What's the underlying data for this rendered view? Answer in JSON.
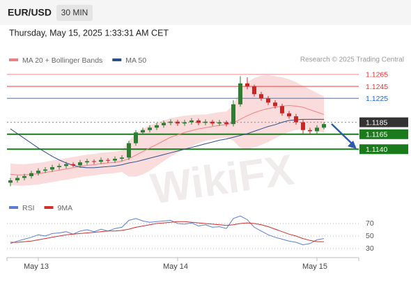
{
  "chart_data": {
    "type": "candlestick",
    "title": "EUR/USD",
    "timeframe": "30 MIN",
    "timestamp": "Thursday, May 15, 2025 1:33:31 AM CET",
    "source": "Research © 2025 Trading Central",
    "watermark": "WikiFX",
    "up_color": "#2e7d32",
    "down_color": "#c62828",
    "categories": [
      null,
      null,
      null,
      null,
      "May 13",
      null,
      null,
      null,
      null,
      null,
      null,
      null,
      null,
      null,
      null,
      null,
      null,
      null,
      null,
      null,
      null,
      null,
      null,
      null,
      "May 14",
      null,
      null,
      null,
      null,
      null,
      null,
      null,
      null,
      null,
      null,
      null,
      null,
      null,
      null,
      null,
      null,
      null,
      null,
      null,
      "May 15",
      null
    ],
    "open": [
      1.1084,
      1.1088,
      1.1092,
      1.1095,
      1.11,
      1.1104,
      1.1106,
      1.111,
      1.1112,
      1.1115,
      1.1113,
      1.1118,
      1.112,
      1.1119,
      1.1122,
      1.1121,
      1.1124,
      1.1126,
      1.115,
      1.1168,
      1.1172,
      1.1176,
      1.118,
      1.1184,
      1.1186,
      1.1183,
      1.1185,
      1.1188,
      1.1184,
      1.1186,
      1.1183,
      1.1185,
      1.1182,
      1.1215,
      1.125,
      1.1245,
      1.1232,
      1.1225,
      1.1218,
      1.1212,
      1.12,
      1.1195,
      1.1185,
      1.1172,
      1.117,
      1.1176
    ],
    "high": [
      1.1092,
      1.1096,
      1.1099,
      1.1104,
      1.1108,
      1.111,
      1.1114,
      1.1116,
      1.1119,
      1.1118,
      1.1122,
      1.1124,
      1.1123,
      1.1126,
      1.1125,
      1.1128,
      1.113,
      1.1154,
      1.1172,
      1.1176,
      1.118,
      1.1184,
      1.1188,
      1.119,
      1.1189,
      1.1189,
      1.1192,
      1.1191,
      1.119,
      1.1189,
      1.1189,
      1.1188,
      1.1222,
      1.1262,
      1.126,
      1.1248,
      1.1236,
      1.1229,
      1.1222,
      1.1216,
      1.1204,
      1.1199,
      1.1189,
      1.1176,
      1.118,
      1.1185
    ],
    "low": [
      1.1078,
      1.1084,
      1.1088,
      1.1091,
      1.1096,
      1.11,
      1.1102,
      1.1106,
      1.1108,
      1.111,
      1.1109,
      1.1114,
      1.1115,
      1.1115,
      1.1117,
      1.1117,
      1.112,
      1.1122,
      1.1146,
      1.1164,
      1.1168,
      1.1172,
      1.1176,
      1.118,
      1.1179,
      1.1179,
      1.1181,
      1.118,
      1.118,
      1.1179,
      1.1179,
      1.1178,
      1.1178,
      1.1211,
      1.124,
      1.1228,
      1.1221,
      1.1214,
      1.1208,
      1.1196,
      1.1191,
      1.1181,
      1.1166,
      1.1165,
      1.1166,
      1.1173
    ],
    "close": [
      1.1088,
      1.1092,
      1.1095,
      1.11,
      1.1104,
      1.1106,
      1.111,
      1.1112,
      1.1115,
      1.1113,
      1.1118,
      1.112,
      1.1119,
      1.1122,
      1.1121,
      1.1124,
      1.1126,
      1.115,
      1.1168,
      1.1172,
      1.1176,
      1.118,
      1.1184,
      1.1186,
      1.1183,
      1.1185,
      1.1188,
      1.1184,
      1.1186,
      1.1183,
      1.1185,
      1.1182,
      1.1215,
      1.125,
      1.1245,
      1.1232,
      1.1225,
      1.1218,
      1.1212,
      1.12,
      1.1195,
      1.1185,
      1.1172,
      1.117,
      1.1176,
      1.1182
    ],
    "series": [
      {
        "name": "MA 20 + Bollinger Bands",
        "color": "#f08080",
        "values": [
          1.1098,
          1.1097,
          1.1097,
          1.1098,
          1.1099,
          1.1101,
          1.1103,
          1.1105,
          1.1107,
          1.1109,
          1.1111,
          1.1113,
          1.1114,
          1.1116,
          1.1117,
          1.1118,
          1.112,
          1.1124,
          1.113,
          1.1136,
          1.1142,
          1.1148,
          1.1154,
          1.116,
          1.1164,
          1.1168,
          1.1171,
          1.1174,
          1.1176,
          1.1178,
          1.118,
          1.1181,
          1.1184,
          1.119,
          1.1196,
          1.1201,
          1.1205,
          1.1208,
          1.121,
          1.1212,
          1.1213,
          1.1212,
          1.121,
          1.1206,
          1.1202,
          1.1198
        ],
        "upper": [
          1.1116,
          1.1115,
          1.1115,
          1.1116,
          1.1117,
          1.1119,
          1.1121,
          1.1123,
          1.1125,
          1.1127,
          1.1129,
          1.1131,
          1.1132,
          1.1134,
          1.1135,
          1.1136,
          1.1138,
          1.1154,
          1.1166,
          1.1174,
          1.118,
          1.1184,
          1.1188,
          1.1192,
          1.1194,
          1.1196,
          1.1197,
          1.1198,
          1.1198,
          1.12,
          1.1202,
          1.1203,
          1.1214,
          1.1238,
          1.1252,
          1.1259,
          1.1263,
          1.1264,
          1.1262,
          1.126,
          1.1257,
          1.1252,
          1.1246,
          1.124,
          1.1234,
          1.1228
        ],
        "lower": [
          1.108,
          1.1079,
          1.1079,
          1.108,
          1.1081,
          1.1083,
          1.1085,
          1.1087,
          1.1089,
          1.1091,
          1.1093,
          1.1095,
          1.1096,
          1.1098,
          1.1099,
          1.11,
          1.1102,
          1.1094,
          1.1094,
          1.1098,
          1.1104,
          1.1112,
          1.112,
          1.1128,
          1.1134,
          1.114,
          1.1145,
          1.115,
          1.1154,
          1.1156,
          1.1158,
          1.1159,
          1.1154,
          1.1142,
          1.114,
          1.1143,
          1.1147,
          1.1152,
          1.1158,
          1.1164,
          1.1169,
          1.1172,
          1.1174,
          1.1172,
          1.117,
          1.1168
        ]
      },
      {
        "name": "MA 50",
        "color": "#2c4f8c",
        "values": [
          1.1174,
          1.1166,
          1.1158,
          1.115,
          1.1142,
          1.1135,
          1.1128,
          1.1122,
          1.1117,
          1.1113,
          1.111,
          1.1109,
          1.1109,
          1.111,
          1.1111,
          1.1112,
          1.1114,
          1.1117,
          1.1119,
          1.1122,
          1.1125,
          1.1128,
          1.1131,
          1.1134,
          1.1137,
          1.114,
          1.1143,
          1.1146,
          1.1149,
          1.1152,
          1.1155,
          1.1157,
          1.116,
          1.1163,
          1.1166,
          1.117,
          1.1174,
          1.1178,
          1.1181,
          1.1185,
          1.1188,
          1.1189,
          1.119,
          1.119,
          1.119,
          1.119
        ]
      }
    ],
    "levels": [
      {
        "value": 1.1265,
        "label": "1.1265",
        "color": "#f4a0a0",
        "text_color": "#e53935",
        "boxed": false
      },
      {
        "value": 1.1245,
        "label": "1.1245",
        "color": "#ef5350",
        "text_color": "#e53935",
        "boxed": false
      },
      {
        "value": 1.1225,
        "label": "1.1225",
        "color": "#5c8fd6",
        "text_color": "#2a64c0",
        "boxed": false
      },
      {
        "value": 1.1185,
        "label": "1.1185",
        "color": "#999999",
        "text_color": "#333333",
        "boxed": true
      },
      {
        "value": 1.1165,
        "label": "1.1165",
        "color": "#1b7a1b",
        "text_color": "#1b7a1b",
        "boxed": true
      },
      {
        "value": 1.114,
        "label": "1.1140",
        "color": "#1b7a1b",
        "text_color": "#1b7a1b",
        "boxed": true
      }
    ],
    "ylim": [
      1.106,
      1.128
    ],
    "rsi": {
      "series": [
        {
          "name": "RSI",
          "color": "#5b7fd6",
          "values": [
            38,
            42,
            45,
            48,
            52,
            50,
            54,
            55,
            57,
            53,
            58,
            60,
            57,
            61,
            58,
            62,
            64,
            75,
            78,
            74,
            72,
            73,
            74,
            75,
            70,
            69,
            71,
            66,
            68,
            64,
            65,
            62,
            78,
            82,
            76,
            64,
            58,
            52,
            48,
            45,
            42,
            40,
            36,
            38,
            44,
            46
          ]
        },
        {
          "name": "9MA",
          "color": "#d32f2f",
          "values": [
            40,
            40,
            41,
            42,
            44,
            46,
            48,
            50,
            52,
            53,
            54,
            55,
            56,
            57,
            58,
            58,
            59,
            61,
            64,
            66,
            68,
            70,
            71,
            72,
            73,
            73,
            72,
            71,
            70,
            69,
            68,
            67,
            68,
            70,
            71,
            70,
            68,
            65,
            61,
            57,
            53,
            50,
            46,
            43,
            41,
            41
          ]
        }
      ],
      "ylim": [
        20,
        85
      ],
      "yticks": [
        30,
        50,
        70
      ]
    }
  }
}
